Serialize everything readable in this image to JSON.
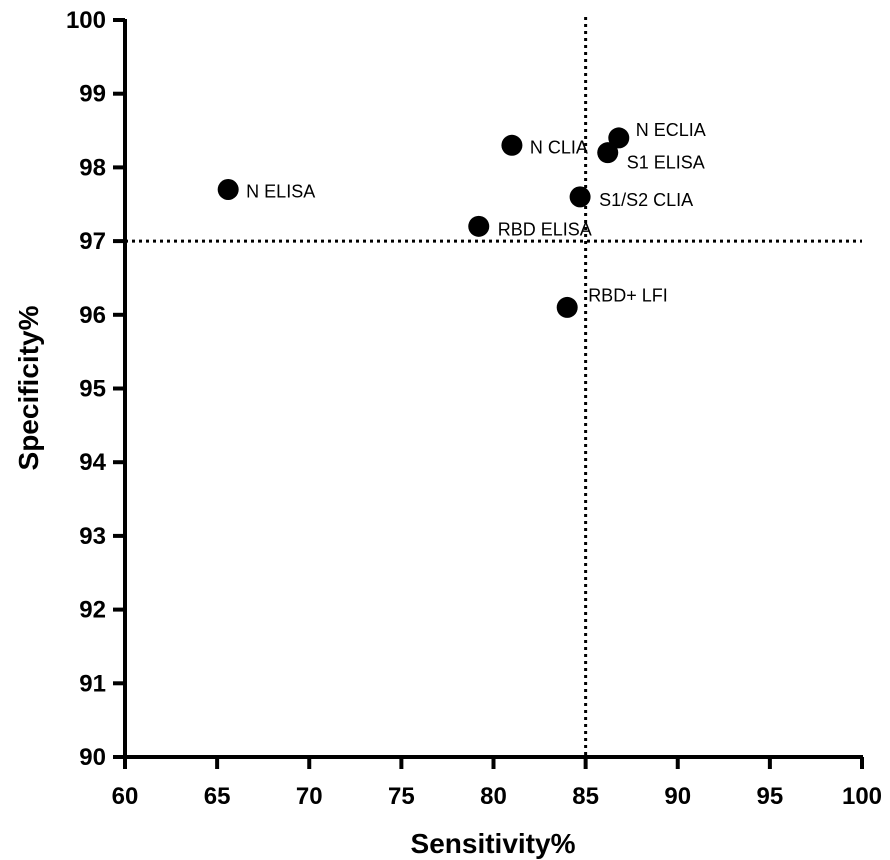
{
  "chart_data": {
    "type": "scatter",
    "title": "",
    "xlabel": "Sensitivity%",
    "ylabel": "Specificity%",
    "xlim": [
      60,
      100
    ],
    "ylim": [
      90,
      100
    ],
    "xticks": [
      60,
      65,
      70,
      75,
      80,
      85,
      90,
      95,
      100
    ],
    "yticks": [
      90,
      91,
      92,
      93,
      94,
      95,
      96,
      97,
      98,
      99,
      100
    ],
    "grid": false,
    "legend": "none",
    "points": [
      {
        "label": "N ELISA",
        "x": 65.6,
        "y": 97.7
      },
      {
        "label": "N CLIA",
        "x": 81.0,
        "y": 98.3
      },
      {
        "label": "N ECLIA",
        "x": 86.8,
        "y": 98.4
      },
      {
        "label": "S1 ELISA",
        "x": 86.2,
        "y": 98.2
      },
      {
        "label": "S1/S2 CLIA",
        "x": 84.7,
        "y": 97.6
      },
      {
        "label": "RBD ELISA",
        "x": 79.2,
        "y": 97.2
      },
      {
        "label": "RBD+ LFI",
        "x": 84.0,
        "y": 96.1
      }
    ],
    "reference_lines": {
      "x": 85,
      "y": 97
    },
    "colors": {
      "points": "#000000",
      "axes": "#000000"
    }
  }
}
